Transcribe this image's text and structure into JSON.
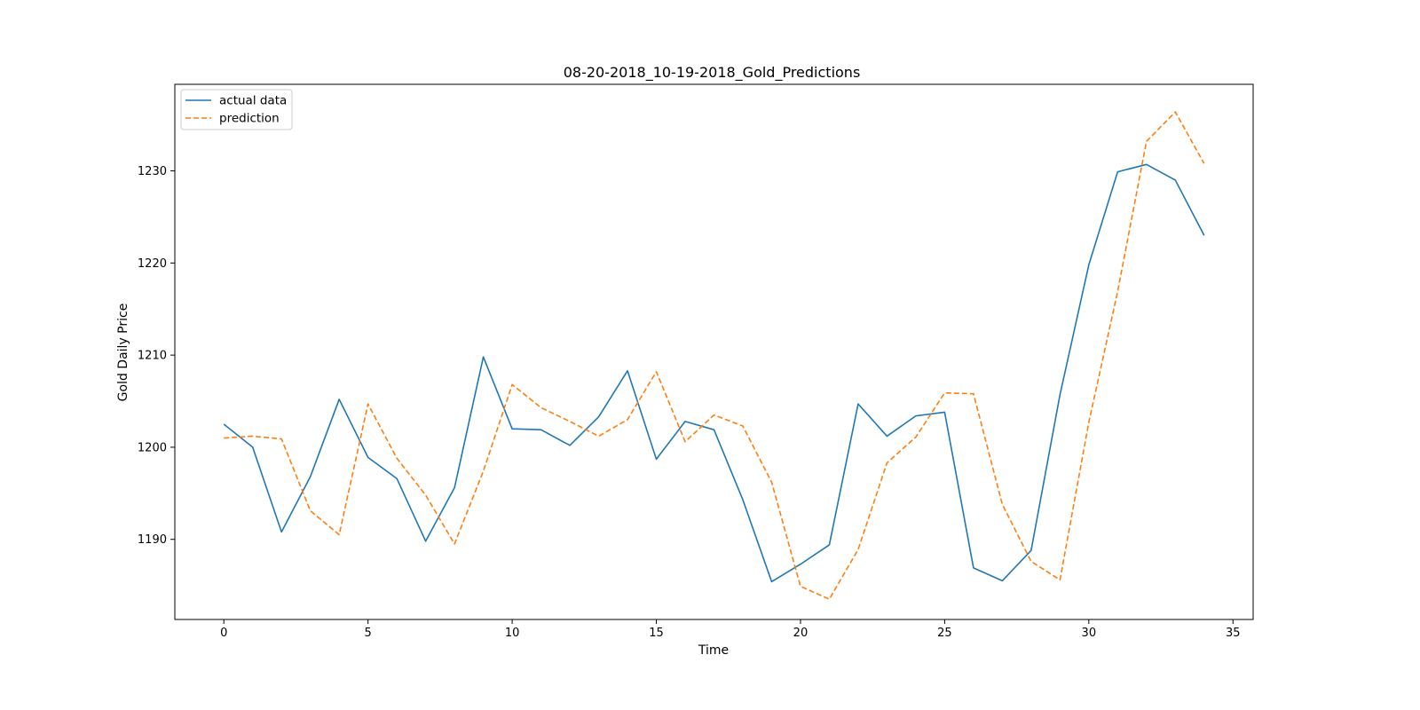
{
  "chart_data": {
    "type": "line",
    "title": "08-20-2018_10-19-2018_Gold_Predictions",
    "xlabel": "Time",
    "ylabel": "Gold Daily Price",
    "xlim": [
      -1.7,
      35.7
    ],
    "ylim": [
      1181.3,
      1239.4
    ],
    "xticks": [
      0,
      5,
      10,
      15,
      20,
      25,
      30,
      35
    ],
    "yticks": [
      1190,
      1200,
      1210,
      1220,
      1230
    ],
    "grid": false,
    "legend_position": "top-left",
    "x": [
      0,
      1,
      2,
      3,
      4,
      5,
      6,
      7,
      8,
      9,
      10,
      11,
      12,
      13,
      14,
      15,
      16,
      17,
      18,
      19,
      20,
      21,
      22,
      23,
      24,
      25,
      26,
      27,
      28,
      29,
      30,
      31,
      32,
      33,
      34
    ],
    "series": [
      {
        "name": "actual data",
        "color": "#1f77b4",
        "style": "solid",
        "values": [
          1202.5,
          1200.0,
          1190.8,
          1196.8,
          1205.2,
          1198.9,
          1196.6,
          1189.8,
          1195.6,
          1209.8,
          1202.0,
          1201.9,
          1200.2,
          1203.3,
          1208.3,
          1198.7,
          1202.8,
          1201.9,
          1194.3,
          1185.4,
          1187.3,
          1189.4,
          1204.7,
          1201.2,
          1203.4,
          1203.8,
          1186.9,
          1185.5,
          1188.8,
          1205.7,
          1219.8,
          1229.9,
          1230.7,
          1229.0,
          1223.0
        ]
      },
      {
        "name": "prediction",
        "color": "#ff7f0e",
        "style": "dashed",
        "values": [
          1201.0,
          1201.2,
          1200.9,
          1193.1,
          1190.5,
          1204.7,
          1198.8,
          1194.8,
          1189.5,
          1197.4,
          1206.8,
          1204.3,
          1202.8,
          1201.2,
          1203.0,
          1208.2,
          1200.6,
          1203.5,
          1202.3,
          1196.2,
          1184.9,
          1183.5,
          1188.9,
          1198.3,
          1201.1,
          1205.9,
          1205.8,
          1193.8,
          1187.6,
          1185.6,
          1202.7,
          1216.9,
          1233.2,
          1236.4,
          1230.8
        ]
      }
    ]
  }
}
